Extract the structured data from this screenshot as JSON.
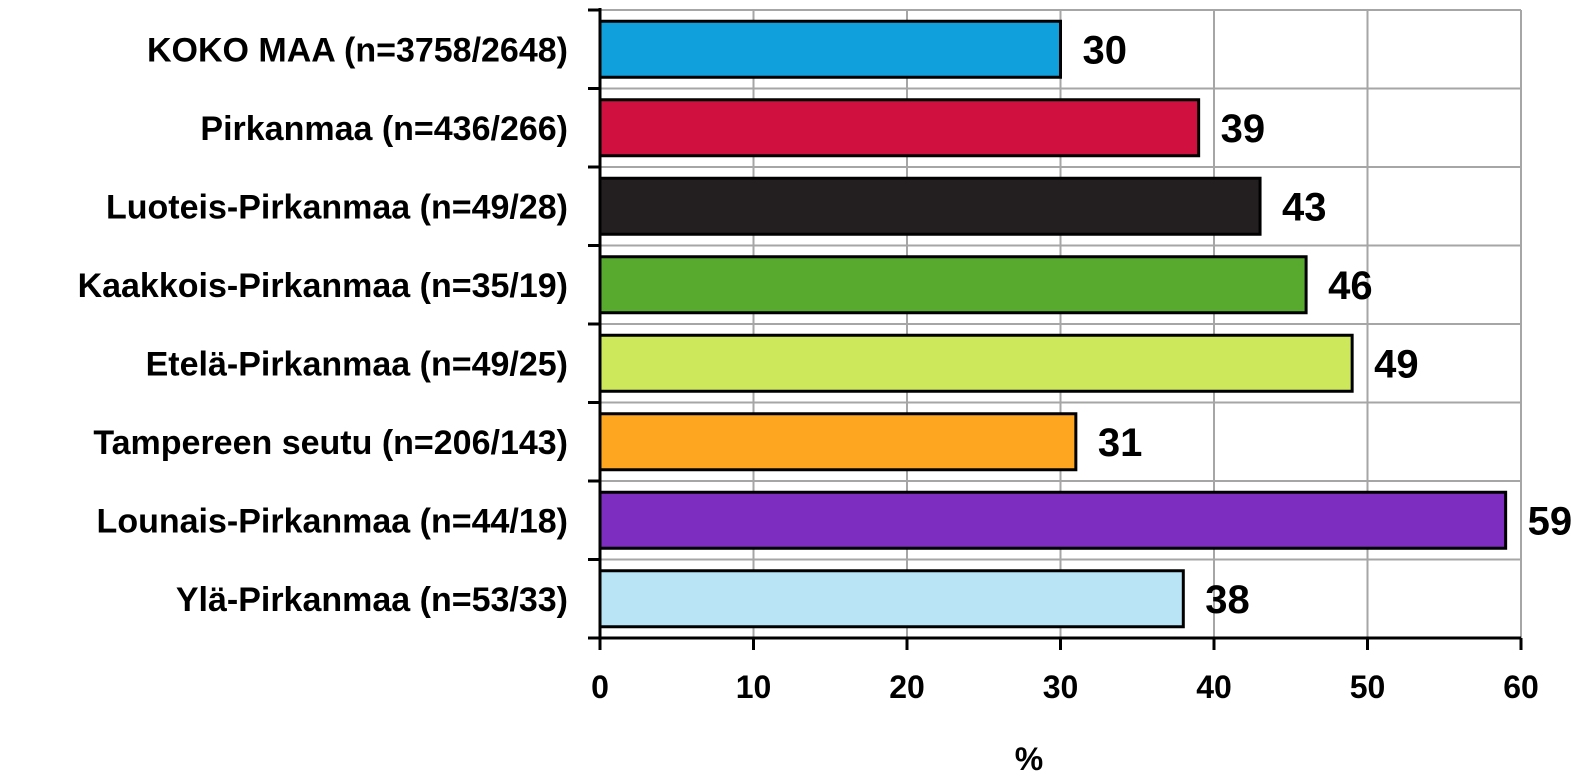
{
  "chart_data": {
    "type": "bar",
    "orientation": "horizontal",
    "xlabel": "%",
    "xlim": [
      0,
      60
    ],
    "x_ticks": [
      "0",
      "10",
      "20",
      "30",
      "40",
      "50",
      "60"
    ],
    "grid": true,
    "legend": "none",
    "categories": [
      "KOKO MAA (n=3758/2648)",
      "Pirkanmaa (n=436/266)",
      "Luoteis-Pirkanmaa (n=49/28)",
      "Kaakkois-Pirkanmaa (n=35/19)",
      "Etelä-Pirkanmaa (n=49/25)",
      "Tampereen seutu (n=206/143)",
      "Lounais-Pirkanmaa (n=44/18)",
      "Ylä-Pirkanmaa (n=53/33)"
    ],
    "values": [
      30,
      39,
      43,
      46,
      49,
      31,
      59,
      38
    ],
    "value_labels": [
      "30",
      "39",
      "43",
      "46",
      "49",
      "31",
      "59",
      "38"
    ],
    "colors": [
      "#10A0DC",
      "#D0103F",
      "#231F20",
      "#57AA2E",
      "#CDE85A",
      "#FFA620",
      "#7D2EC0",
      "#B8E4F6"
    ]
  }
}
